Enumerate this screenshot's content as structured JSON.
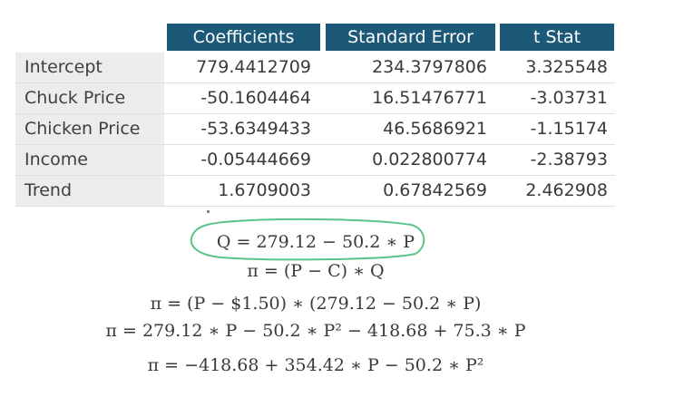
{
  "table": {
    "headers": [
      "Coefficients",
      "Standard Error",
      "t Stat"
    ],
    "rows": [
      {
        "label": "Intercept",
        "coef": "779.4412709",
        "se": "234.3797806",
        "t": "3.325548"
      },
      {
        "label": "Chuck Price",
        "coef": "-50.1604464",
        "se": "16.51476771",
        "t": "-3.03731"
      },
      {
        "label": "Chicken Price",
        "coef": "-53.6349433",
        "se": "46.5686921",
        "t": "-1.15174"
      },
      {
        "label": "Income",
        "coef": "-0.05444669",
        "se": "0.022800774",
        "t": "-2.38793"
      },
      {
        "label": "Trend",
        "coef": "1.6709003",
        "se": "0.67842569",
        "t": "2.462908"
      }
    ]
  },
  "equations": {
    "demand": "Q = 279.12 − 50.2 ∗ P",
    "profit_def": "π = (P − C) ∗ Q",
    "profit_sub": "π = (P − $1.50) ∗ (279.12 − 50.2 ∗ P)",
    "profit_expand": "π = 279.12 ∗ P − 50.2 ∗ P² − 418.68 + 75.3 ∗ P",
    "profit_final": "π = −418.68 + 354.42 ∗ P  − 50.2 ∗ P²"
  },
  "colors": {
    "header_bg": "#1c5878",
    "label_bg": "#ececec",
    "circle": "#5cc48a"
  }
}
